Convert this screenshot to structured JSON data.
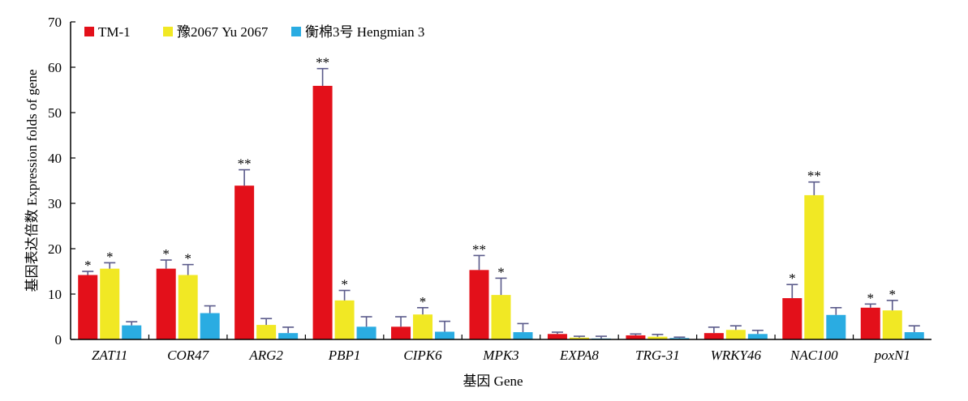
{
  "chart_data": {
    "type": "bar",
    "ylabel": "基因表达倍数 Expression folds of gene",
    "xlabel": "基因 Gene",
    "ylim": [
      0,
      70
    ],
    "yticks": [
      0,
      10,
      20,
      30,
      40,
      50,
      60,
      70
    ],
    "legend_position": "top-left",
    "categories": [
      "ZAT11",
      "COR47",
      "ARG2",
      "PBP1",
      "CIPK6",
      "MPK3",
      "EXPA8",
      "TRG-31",
      "WRKY46",
      "NAC100",
      "poxN1"
    ],
    "series": [
      {
        "name": "TM-1",
        "color": "#e3101a",
        "values": [
          14.2,
          15.6,
          33.9,
          55.9,
          2.8,
          15.3,
          1.2,
          0.9,
          1.4,
          9.1,
          7.0
        ],
        "errors": [
          0.8,
          1.9,
          3.5,
          3.8,
          2.2,
          3.2,
          0.4,
          0.3,
          1.3,
          3.0,
          0.8
        ],
        "significance": [
          "*",
          "*",
          "**",
          "**",
          "",
          "**",
          "",
          "",
          "",
          "*",
          "*"
        ]
      },
      {
        "name": "豫2067 Yu 2067",
        "color": "#f1e824",
        "values": [
          15.6,
          14.2,
          3.2,
          8.6,
          5.5,
          9.8,
          0.4,
          0.6,
          2.1,
          31.8,
          6.4
        ],
        "errors": [
          1.3,
          2.3,
          1.4,
          2.2,
          1.5,
          3.7,
          0.3,
          0.5,
          0.9,
          2.9,
          2.2
        ],
        "significance": [
          "*",
          "*",
          "",
          "*",
          "*",
          "*",
          "",
          "",
          "",
          "**",
          "*"
        ]
      },
      {
        "name": "衡棉3号 Hengmian 3",
        "color": "#2aace2",
        "values": [
          3.1,
          5.8,
          1.4,
          2.8,
          1.7,
          1.6,
          0.2,
          0.3,
          1.2,
          5.4,
          1.6
        ],
        "errors": [
          0.8,
          1.6,
          1.3,
          2.2,
          2.3,
          1.9,
          0.5,
          0.2,
          0.8,
          1.6,
          1.4
        ],
        "significance": [
          "",
          "",
          "",
          "",
          "",
          "",
          "",
          "",
          "",
          "",
          ""
        ]
      }
    ]
  }
}
